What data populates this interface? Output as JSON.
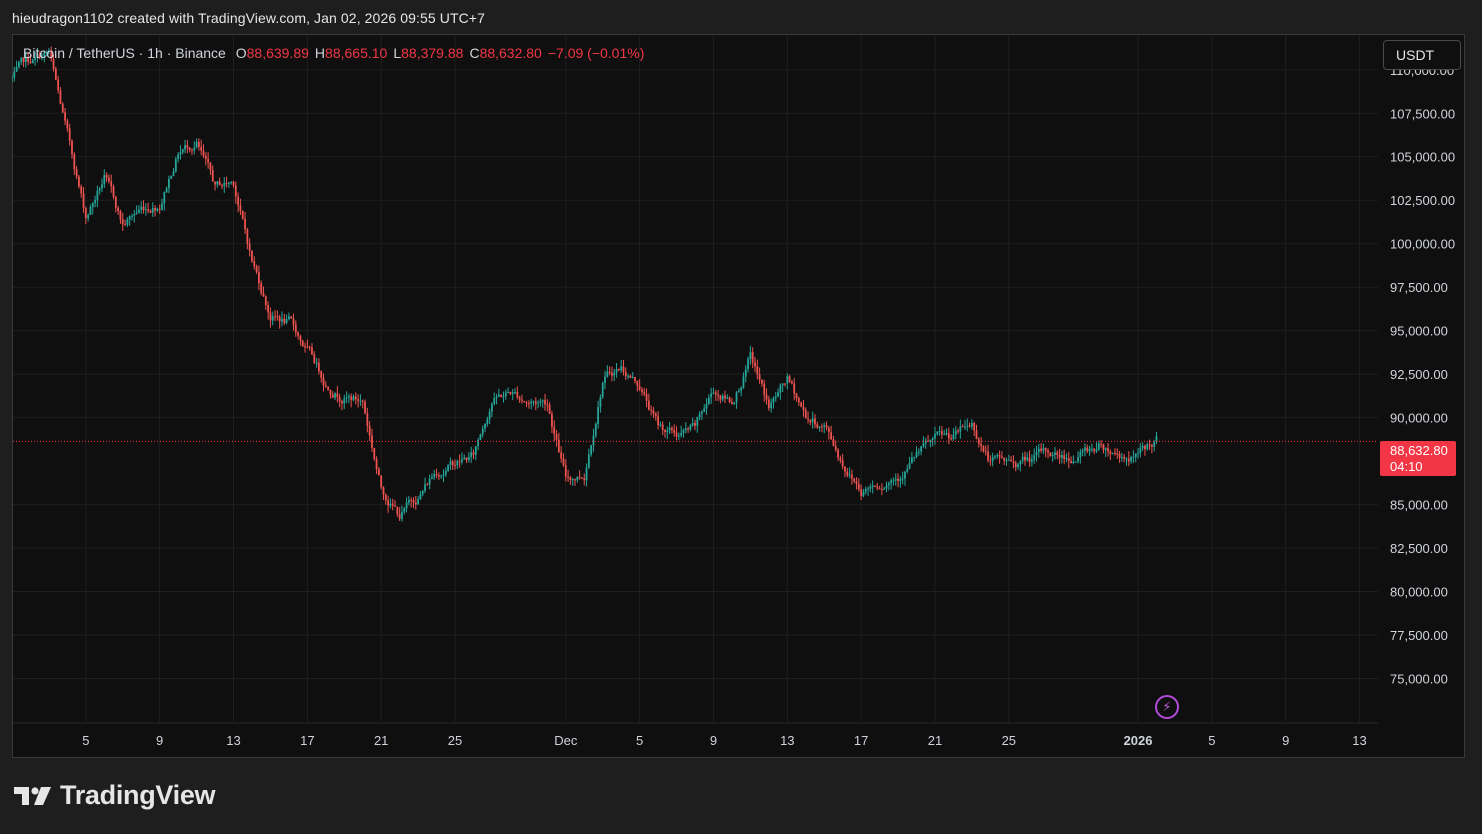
{
  "header": {
    "text": "hieudragon1102 created with TradingView.com, Jan 02, 2026 09:55 UTC+7"
  },
  "legend": {
    "symbol": "Bitcoin / TetherUS · 1h · Binance",
    "open_label": "O",
    "open": "88,639.89",
    "high_label": "H",
    "high": "88,665.10",
    "low_label": "L",
    "low": "88,379.88",
    "close_label": "C",
    "close": "88,632.80",
    "change": "−7.09 (−0.01%)"
  },
  "currency": "USDT",
  "last_price": {
    "price": "88,632.80",
    "countdown": "04:10",
    "value": 88632.8
  },
  "footer": {
    "brand": "TradingView"
  },
  "colors": {
    "up": "#26a69a",
    "down": "#ef5350",
    "price_line": "#f23645",
    "accent": "#b44bdc"
  },
  "icons": {
    "bolt": "lightning-bolt-icon",
    "logo": "tradingview-logo-icon"
  },
  "chart_data": {
    "type": "candlestick",
    "symbol": "BTCUSDT",
    "interval": "1h",
    "ylim": [
      72500,
      112000
    ],
    "y_ticks": [
      {
        "value": 110000,
        "label": "110,000.00"
      },
      {
        "value": 107500,
        "label": "107,500.00"
      },
      {
        "value": 105000,
        "label": "105,000.00"
      },
      {
        "value": 102500,
        "label": "102,500.00"
      },
      {
        "value": 100000,
        "label": "100,000.00"
      },
      {
        "value": 97500,
        "label": "97,500.00"
      },
      {
        "value": 95000,
        "label": "95,000.00"
      },
      {
        "value": 92500,
        "label": "92,500.00"
      },
      {
        "value": 90000,
        "label": "90,000.00"
      },
      {
        "value": 85000,
        "label": "85,000.00"
      },
      {
        "value": 82500,
        "label": "82,500.00"
      },
      {
        "value": 80000,
        "label": "80,000.00"
      },
      {
        "value": 77500,
        "label": "77,500.00"
      },
      {
        "value": 75000,
        "label": "75,000.00"
      }
    ],
    "x_range": [
      "2025-11-01",
      "2026-01-14"
    ],
    "x_ticks": [
      {
        "date": "2025-11-05",
        "label": "5"
      },
      {
        "date": "2025-11-09",
        "label": "9"
      },
      {
        "date": "2025-11-13",
        "label": "13"
      },
      {
        "date": "2025-11-17",
        "label": "17"
      },
      {
        "date": "2025-11-21",
        "label": "21"
      },
      {
        "date": "2025-11-25",
        "label": "25"
      },
      {
        "date": "2025-12-01",
        "label": "Dec"
      },
      {
        "date": "2025-12-05",
        "label": "5"
      },
      {
        "date": "2025-12-09",
        "label": "9"
      },
      {
        "date": "2025-12-13",
        "label": "13"
      },
      {
        "date": "2025-12-17",
        "label": "17"
      },
      {
        "date": "2025-12-21",
        "label": "21"
      },
      {
        "date": "2025-12-25",
        "label": "25"
      },
      {
        "date": "2026-01-01",
        "label": "2026",
        "bold": true
      },
      {
        "date": "2026-01-05",
        "label": "5"
      },
      {
        "date": "2026-01-09",
        "label": "9"
      },
      {
        "date": "2026-01-13",
        "label": "13"
      }
    ],
    "price_path": [
      [
        "2025-11-01",
        109500
      ],
      [
        "2025-11-02",
        110300
      ],
      [
        "2025-11-03",
        110800
      ],
      [
        "2025-11-04",
        106000
      ],
      [
        "2025-11-05",
        101500
      ],
      [
        "2025-11-06",
        103800
      ],
      [
        "2025-11-07",
        101000
      ],
      [
        "2025-11-08",
        102000
      ],
      [
        "2025-11-09",
        102500
      ],
      [
        "2025-11-10",
        105500
      ],
      [
        "2025-11-11",
        106000
      ],
      [
        "2025-11-12",
        103000
      ],
      [
        "2025-11-13",
        103500
      ],
      [
        "2025-11-14",
        99000
      ],
      [
        "2025-11-15",
        96000
      ],
      [
        "2025-11-16",
        95500
      ],
      [
        "2025-11-17",
        93800
      ],
      [
        "2025-11-18",
        92000
      ],
      [
        "2025-11-19",
        91500
      ],
      [
        "2025-11-20",
        91000
      ],
      [
        "2025-11-21",
        86000
      ],
      [
        "2025-11-22",
        84500
      ],
      [
        "2025-11-23",
        85500
      ],
      [
        "2025-11-24",
        87000
      ],
      [
        "2025-11-25",
        87500
      ],
      [
        "2025-11-26",
        87800
      ],
      [
        "2025-11-27",
        91200
      ],
      [
        "2025-11-28",
        91500
      ],
      [
        "2025-11-29",
        91000
      ],
      [
        "2025-11-30",
        91000
      ],
      [
        "2025-12-01",
        86500
      ],
      [
        "2025-12-02",
        86800
      ],
      [
        "2025-12-03",
        92500
      ],
      [
        "2025-12-04",
        93000
      ],
      [
        "2025-12-05",
        92000
      ],
      [
        "2025-12-06",
        89500
      ],
      [
        "2025-12-07",
        89000
      ],
      [
        "2025-12-08",
        89200
      ],
      [
        "2025-12-09",
        91500
      ],
      [
        "2025-12-10",
        91000
      ],
      [
        "2025-12-11",
        93500
      ],
      [
        "2025-12-12",
        90500
      ],
      [
        "2025-12-13",
        92000
      ],
      [
        "2025-12-14",
        90000
      ],
      [
        "2025-12-15",
        89500
      ],
      [
        "2025-12-16",
        87500
      ],
      [
        "2025-12-17",
        86000
      ],
      [
        "2025-12-18",
        86500
      ],
      [
        "2025-12-19",
        87000
      ],
      [
        "2025-12-20",
        88000
      ],
      [
        "2025-12-21",
        88500
      ],
      [
        "2025-12-22",
        88700
      ],
      [
        "2025-12-23",
        89500
      ],
      [
        "2025-12-24",
        87500
      ],
      [
        "2025-12-25",
        87300
      ],
      [
        "2025-12-26",
        87500
      ],
      [
        "2025-12-27",
        87800
      ],
      [
        "2025-12-28",
        87700
      ],
      [
        "2025-12-29",
        88000
      ],
      [
        "2025-12-30",
        88500
      ],
      [
        "2025-12-31",
        88000
      ],
      [
        "2026-01-01",
        87800
      ],
      [
        "2026-01-02",
        88633
      ]
    ]
  }
}
